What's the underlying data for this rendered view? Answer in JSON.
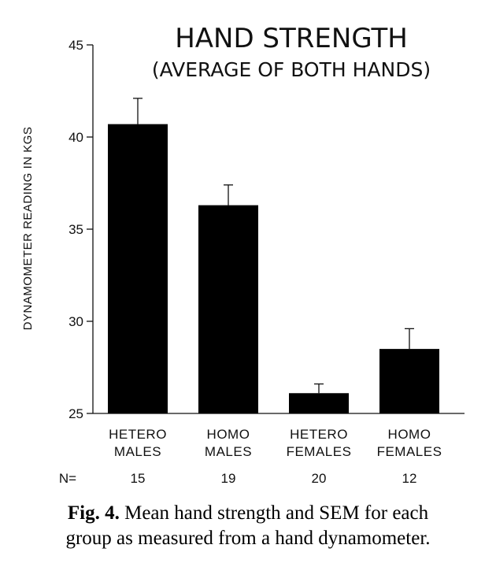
{
  "chart_data": {
    "type": "bar",
    "title": "HAND STRENGTH",
    "subtitle": "(AVERAGE OF BOTH HANDS)",
    "ylabel": "DYNAMOMETER READING IN KGS",
    "xlabel": "",
    "ylim": [
      25,
      45
    ],
    "yticks": [
      25,
      30,
      35,
      40,
      45
    ],
    "categories": [
      [
        "HETERO",
        "MALES"
      ],
      [
        "HOMO",
        "MALES"
      ],
      [
        "HETERO",
        "FEMALES"
      ],
      [
        "HOMO",
        "FEMALES"
      ]
    ],
    "values": [
      40.7,
      36.3,
      26.1,
      28.5
    ],
    "sem": [
      1.4,
      1.1,
      0.5,
      1.1
    ],
    "n_label": "N=",
    "n_values": [
      "15",
      "19",
      "20",
      "12"
    ],
    "grid": false,
    "bar_color": "#000000"
  },
  "caption": {
    "label": "Fig. 4.",
    "line1": "Mean hand strength and SEM for each",
    "line2": "group as measured from a hand dynamometer."
  }
}
